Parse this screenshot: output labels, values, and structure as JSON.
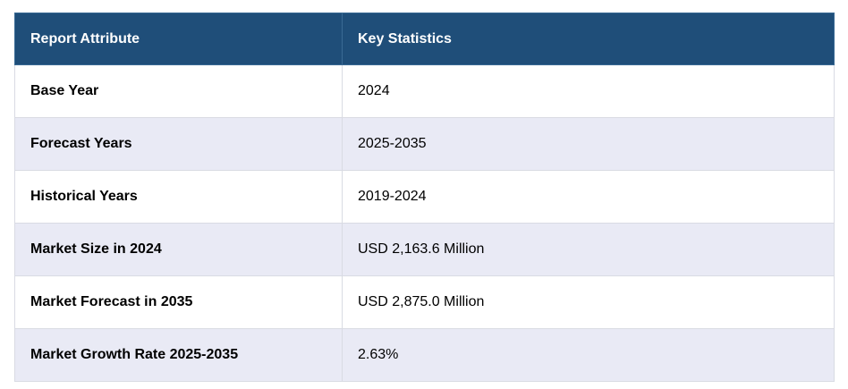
{
  "table": {
    "headers": [
      "Report Attribute",
      "Key Statistics"
    ],
    "rows": [
      [
        "Base Year",
        "2024"
      ],
      [
        "Forecast Years",
        "2025-2035"
      ],
      [
        "Historical Years",
        "2019-2024"
      ],
      [
        "Market Size in 2024",
        "USD 2,163.6 Million"
      ],
      [
        "Market Forecast in 2035",
        "USD 2,875.0 Million"
      ],
      [
        "Market Growth Rate 2025-2035",
        "2.63%"
      ]
    ]
  },
  "colors": {
    "header_bg": "#1f4e79",
    "header_text": "#ffffff",
    "row_alt_bg": "#e9eaf5",
    "row_bg": "#ffffff",
    "border": "#d9dbe3"
  }
}
